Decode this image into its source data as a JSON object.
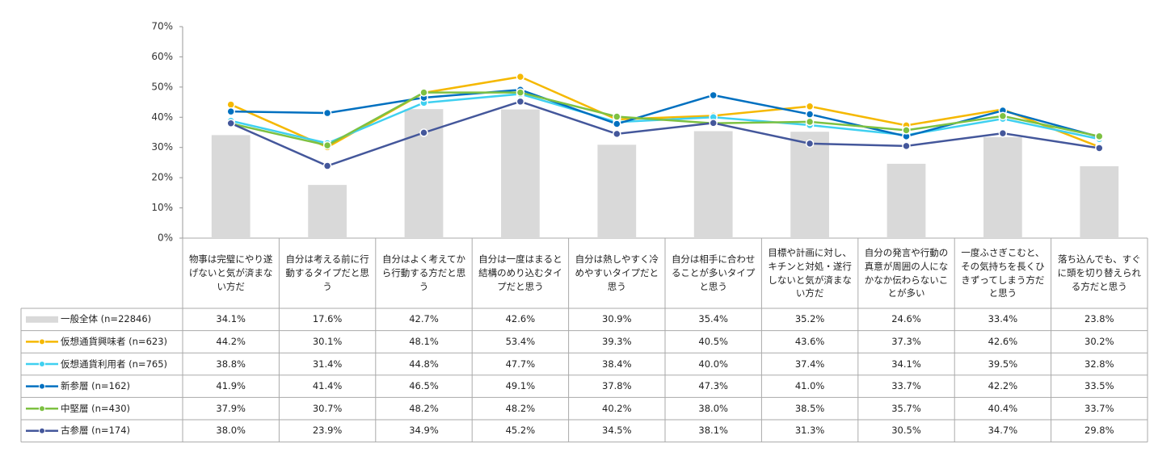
{
  "chart_data": {
    "type": "combo",
    "categories": [
      "物事は完璧にやり遂げないと気が済まない方だ",
      "自分は考える前に行動するタイプだと思う",
      "自分はよく考えてから行動する方だと思う",
      "自分は一度はまると結構のめり込むタイプだと思う",
      "自分は熱しやすく冷めやすいタイプだと思う",
      "自分は相手に合わせることが多いタイプと思う",
      "目標や計画に対し、キチンと対処・遂行しないと気が済まない方だ",
      "自分の発言や行動の真意が周囲の人になかなか伝わらないことが多い",
      "一度ふさぎこむと、その気持ちを長くひきずってしまう方だと思う",
      "落ち込んでも、すぐに頭を切り替えられる方だと思う"
    ],
    "series": [
      {
        "name": "一般全体 (n=22846)",
        "type": "bar",
        "color": "#d9d9d9",
        "values": [
          34.1,
          17.6,
          42.7,
          42.6,
          30.9,
          35.4,
          35.2,
          24.6,
          33.4,
          23.8
        ],
        "value_labels": [
          "34.1%",
          "17.6%",
          "42.7%",
          "42.6%",
          "30.9%",
          "35.4%",
          "35.2%",
          "24.6%",
          "33.4%",
          "23.8%"
        ]
      },
      {
        "name": "仮想通貨興味者 (n=623)",
        "type": "line",
        "color": "#f5b800",
        "values": [
          44.2,
          30.1,
          48.1,
          53.4,
          39.3,
          40.5,
          43.6,
          37.3,
          42.6,
          30.2
        ],
        "value_labels": [
          "44.2%",
          "30.1%",
          "48.1%",
          "53.4%",
          "39.3%",
          "40.5%",
          "43.6%",
          "37.3%",
          "42.6%",
          "30.2%"
        ]
      },
      {
        "name": "仮想通貨利用者 (n=765)",
        "type": "line",
        "color": "#3fd0f0",
        "values": [
          38.8,
          31.4,
          44.8,
          47.7,
          38.4,
          40.0,
          37.4,
          34.1,
          39.5,
          32.8
        ],
        "value_labels": [
          "38.8%",
          "31.4%",
          "44.8%",
          "47.7%",
          "38.4%",
          "40.0%",
          "37.4%",
          "34.1%",
          "39.5%",
          "32.8%"
        ]
      },
      {
        "name": "新参層 (n=162)",
        "type": "line",
        "color": "#0070c0",
        "values": [
          41.9,
          41.4,
          46.5,
          49.1,
          37.8,
          47.3,
          41.0,
          33.7,
          42.2,
          33.5
        ],
        "value_labels": [
          "41.9%",
          "41.4%",
          "46.5%",
          "49.1%",
          "37.8%",
          "47.3%",
          "41.0%",
          "33.7%",
          "42.2%",
          "33.5%"
        ]
      },
      {
        "name": "中堅層 (n=430)",
        "type": "line",
        "color": "#7dc142",
        "values": [
          37.9,
          30.7,
          48.2,
          48.2,
          40.2,
          38.0,
          38.5,
          35.7,
          40.4,
          33.7
        ],
        "value_labels": [
          "37.9%",
          "30.7%",
          "48.2%",
          "48.2%",
          "40.2%",
          "38.0%",
          "38.5%",
          "35.7%",
          "40.4%",
          "33.7%"
        ]
      },
      {
        "name": "古参層 (n=174)",
        "type": "line",
        "color": "#44579b",
        "values": [
          38.0,
          23.9,
          34.9,
          45.2,
          34.5,
          38.1,
          31.3,
          30.5,
          34.7,
          29.8
        ],
        "value_labels": [
          "38.0%",
          "23.9%",
          "34.9%",
          "45.2%",
          "34.5%",
          "38.1%",
          "31.3%",
          "30.5%",
          "34.7%",
          "29.8%"
        ]
      }
    ],
    "ylim": [
      0,
      70
    ],
    "yticks": [
      {
        "value": 0,
        "label": "0%"
      },
      {
        "value": 10,
        "label": "10%"
      },
      {
        "value": 20,
        "label": "20%"
      },
      {
        "value": 30,
        "label": "30%"
      },
      {
        "value": 40,
        "label": "40%"
      },
      {
        "value": 50,
        "label": "50%"
      },
      {
        "value": 60,
        "label": "60%"
      },
      {
        "value": 70,
        "label": "70%"
      }
    ]
  }
}
